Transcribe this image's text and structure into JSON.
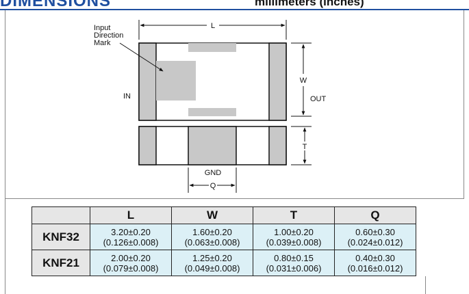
{
  "header": {
    "title": "DIMENSIONS",
    "units": "millimeters (inches)"
  },
  "drawing": {
    "input_mark_label": [
      "Input",
      "Direction",
      "Mark"
    ],
    "in_label": "IN",
    "out_label": "OUT",
    "gnd_label": "GND",
    "dim_L": "L",
    "dim_W": "W",
    "dim_T": "T",
    "dim_Q": "Q"
  },
  "table": {
    "headers": [
      "L",
      "W",
      "T",
      "Q"
    ],
    "rows": [
      {
        "part": "KNF32",
        "cells": [
          {
            "mm": "3.20±0.20",
            "in": "(0.126±0.008)"
          },
          {
            "mm": "1.60±0.20",
            "in": "(0.063±0.008)"
          },
          {
            "mm": "1.00±0.20",
            "in": "(0.039±0.008)"
          },
          {
            "mm": "0.60±0.30",
            "in": "(0.024±0.012)"
          }
        ]
      },
      {
        "part": "KNF21",
        "cells": [
          {
            "mm": "2.00±0.20",
            "in": "(0.079±0.008)"
          },
          {
            "mm": "1.25±0.20",
            "in": "(0.049±0.008)"
          },
          {
            "mm": "0.80±0.15",
            "in": "(0.031±0.006)"
          },
          {
            "mm": "0.40±0.30",
            "in": "(0.016±0.012)"
          }
        ]
      }
    ]
  }
}
